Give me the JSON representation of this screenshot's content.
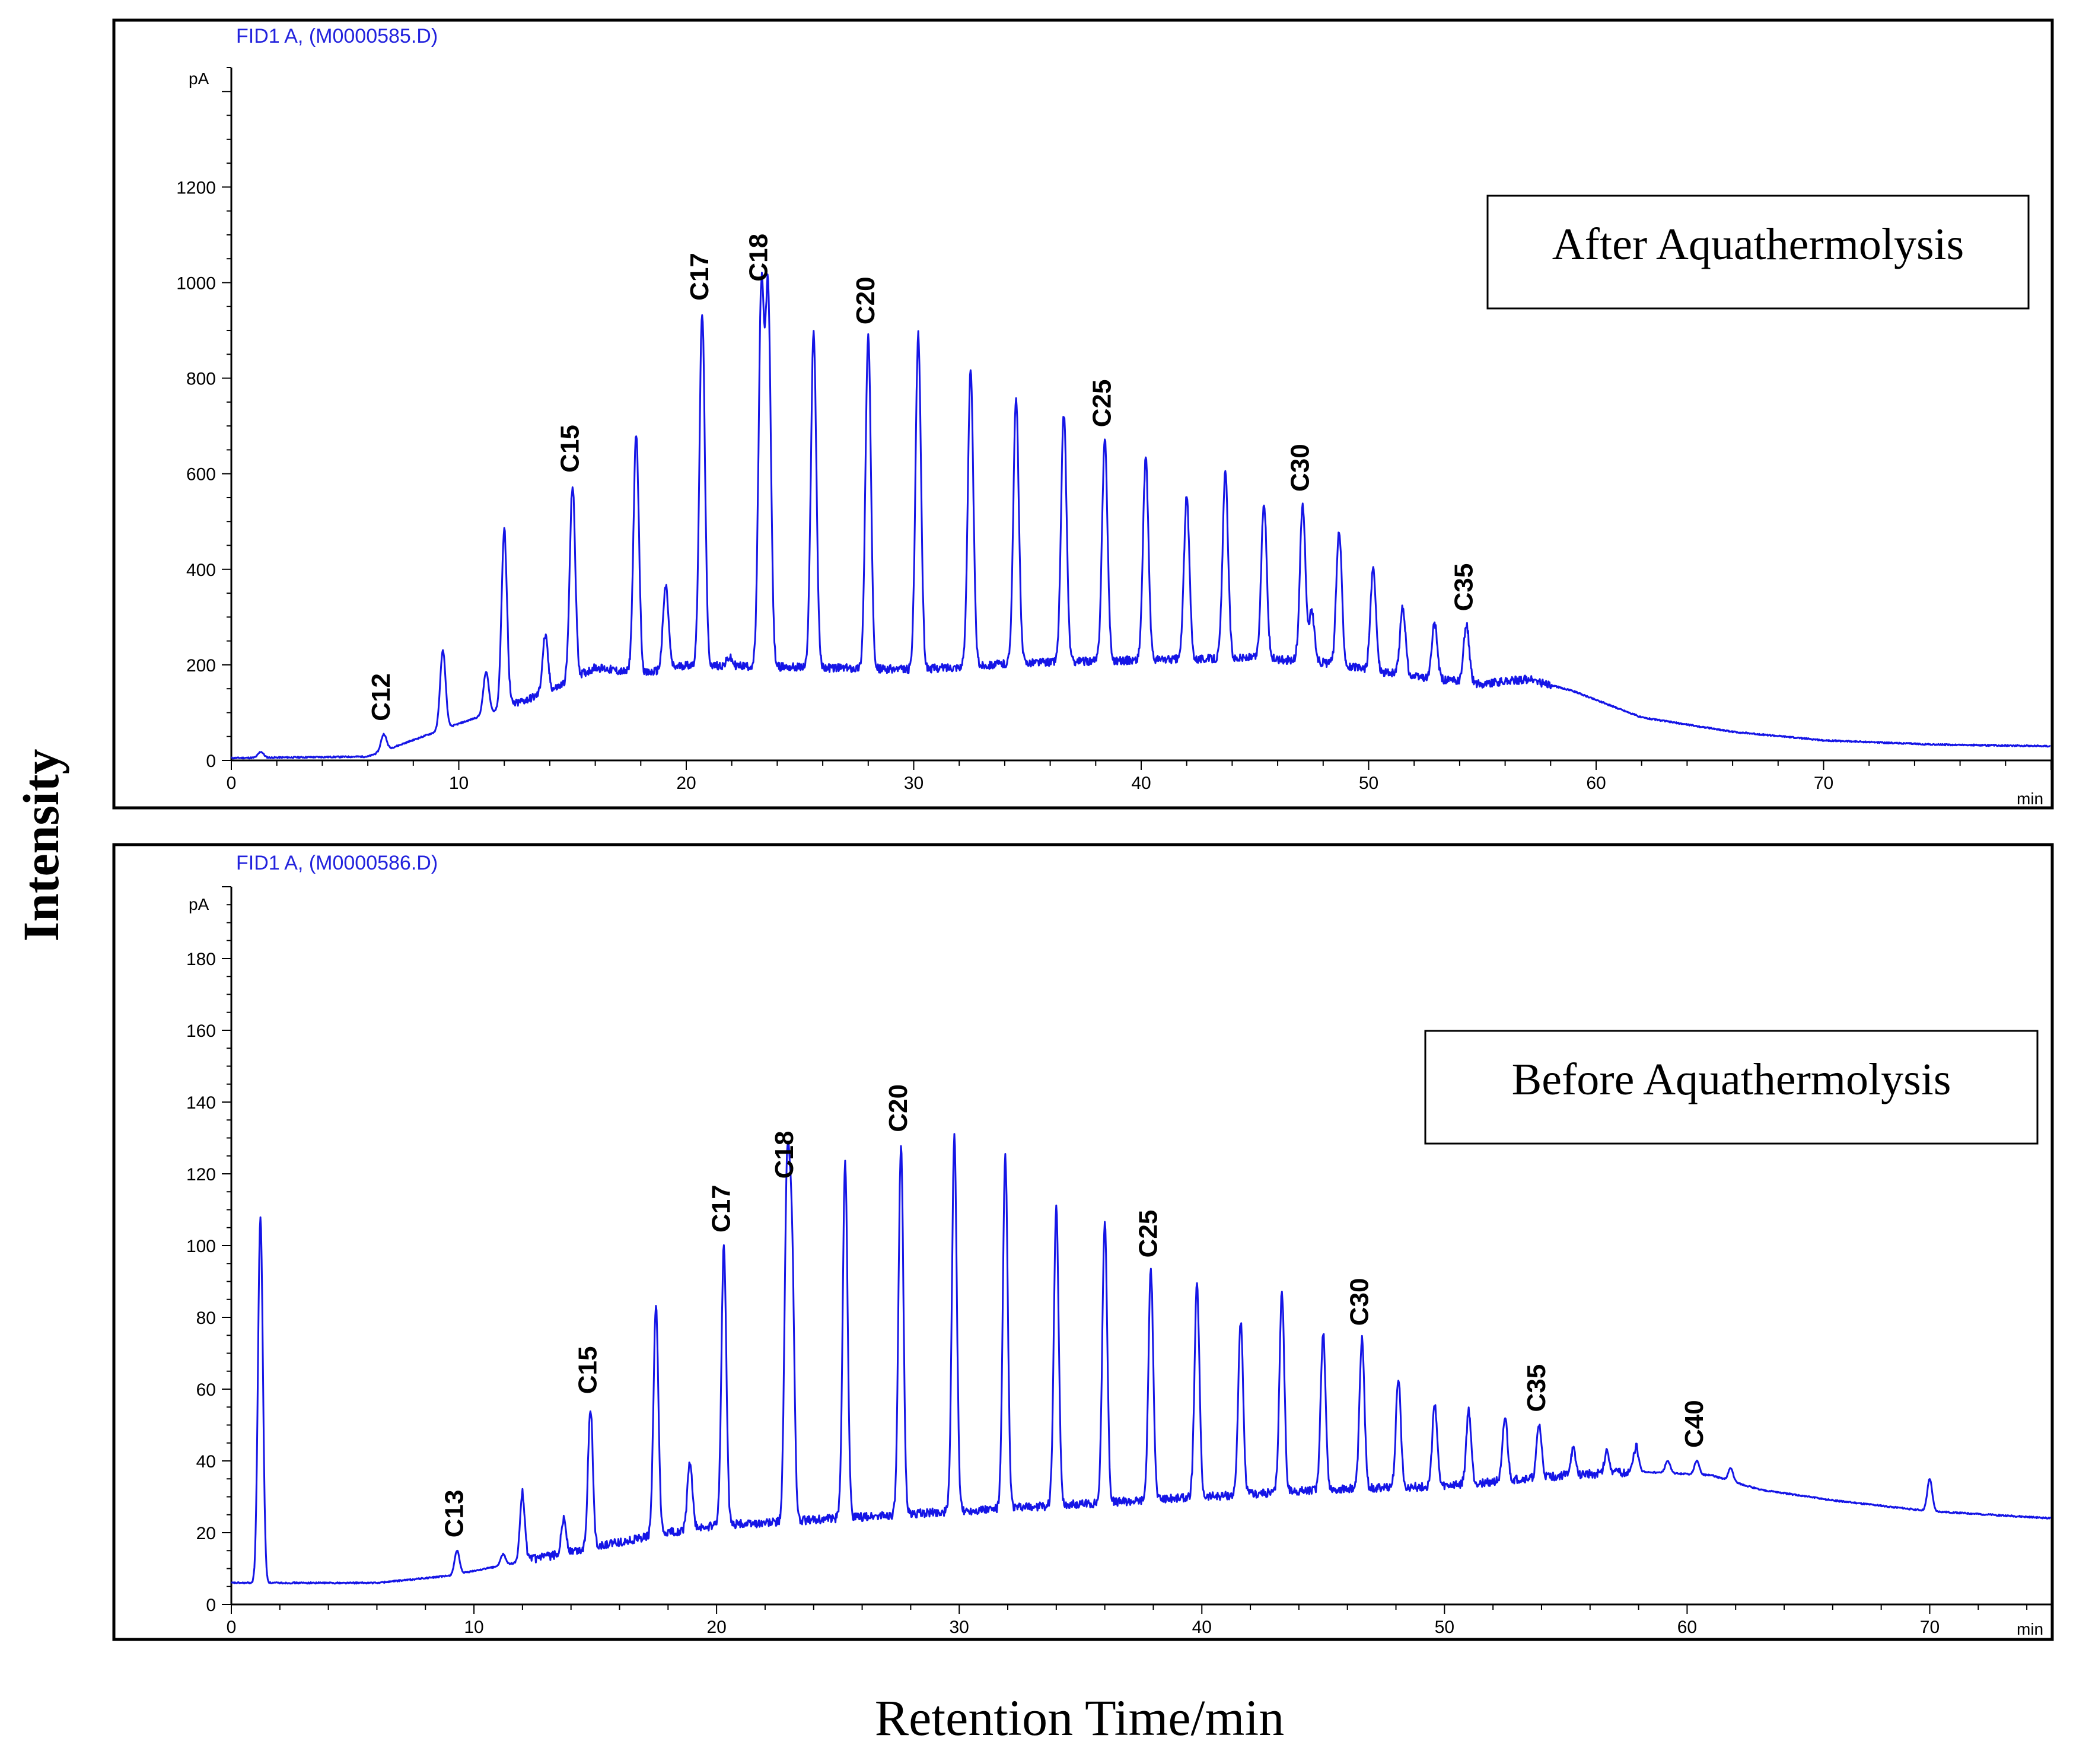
{
  "figure": {
    "ylabel": "Intensity",
    "xlabel": "Retention Time/min"
  },
  "chart_data": [
    {
      "type": "line",
      "panel": "after",
      "file_label": "FID1 A,  (M0000585.D)",
      "legend": "After Aquathermolysis",
      "y_unit": "pA",
      "x_unit": "min",
      "xlim": [
        0,
        80
      ],
      "ylim": [
        0,
        1450
      ],
      "xticks": [
        0,
        10,
        20,
        30,
        40,
        50,
        60,
        70
      ],
      "yticks": [
        0,
        200,
        400,
        600,
        800,
        1000,
        1200
      ],
      "baseline": [
        [
          0,
          5
        ],
        [
          6,
          8
        ],
        [
          9,
          60
        ],
        [
          12,
          110
        ],
        [
          14,
          145
        ],
        [
          16,
          195
        ],
        [
          18,
          180
        ],
        [
          20,
          200
        ],
        [
          25,
          195
        ],
        [
          30,
          190
        ],
        [
          35,
          205
        ],
        [
          40,
          210
        ],
        [
          45,
          215
        ],
        [
          48,
          205
        ],
        [
          52,
          175
        ],
        [
          55,
          160
        ],
        [
          57,
          170
        ],
        [
          59,
          145
        ],
        [
          62,
          90
        ],
        [
          66,
          60
        ],
        [
          70,
          42
        ],
        [
          75,
          33
        ],
        [
          80,
          30
        ]
      ],
      "peaks": [
        [
          1.3,
          18
        ],
        [
          6.7,
          55
        ],
        [
          8.5,
          25
        ],
        [
          9.3,
          230
        ],
        [
          11.2,
          185
        ],
        [
          12.0,
          480
        ],
        [
          13.8,
          260
        ],
        [
          15.0,
          575
        ],
        [
          17.8,
          680
        ],
        [
          19.1,
          365
        ],
        [
          20.7,
          935
        ],
        [
          21.9,
          215
        ],
        [
          23.3,
          975
        ],
        [
          23.6,
          970
        ],
        [
          25.6,
          895
        ],
        [
          28.0,
          885
        ],
        [
          30.2,
          890
        ],
        [
          32.5,
          815
        ],
        [
          34.5,
          755
        ],
        [
          36.6,
          725
        ],
        [
          38.4,
          670
        ],
        [
          40.2,
          630
        ],
        [
          42.0,
          550
        ],
        [
          43.7,
          600
        ],
        [
          45.4,
          540
        ],
        [
          47.1,
          535
        ],
        [
          47.5,
          310
        ],
        [
          48.7,
          480
        ],
        [
          50.2,
          400
        ],
        [
          51.5,
          320
        ],
        [
          52.9,
          285
        ],
        [
          54.3,
          285
        ]
      ],
      "peak_width": 0.12,
      "peak_labels": [
        {
          "text": "C12",
          "x": 6.7,
          "y": 55
        },
        {
          "text": "C15",
          "x": 15.0,
          "y": 575
        },
        {
          "text": "C17",
          "x": 20.7,
          "y": 935
        },
        {
          "text": "C18",
          "x": 23.3,
          "y": 975
        },
        {
          "text": "C20",
          "x": 28.0,
          "y": 885
        },
        {
          "text": "C25",
          "x": 38.4,
          "y": 670
        },
        {
          "text": "C30",
          "x": 47.1,
          "y": 535
        },
        {
          "text": "C35",
          "x": 54.3,
          "y": 285
        }
      ]
    },
    {
      "type": "line",
      "panel": "before",
      "file_label": "FID1 A,  (M0000586.D)",
      "legend": "Before Aquathermolysis",
      "y_unit": "pA",
      "x_unit": "min",
      "xlim": [
        0,
        75
      ],
      "ylim": [
        0,
        200
      ],
      "xticks": [
        0,
        10,
        20,
        30,
        40,
        50,
        60,
        70
      ],
      "yticks": [
        0,
        20,
        40,
        60,
        80,
        100,
        120,
        140,
        160,
        180
      ],
      "baseline": [
        [
          0,
          6
        ],
        [
          6,
          6
        ],
        [
          9,
          8
        ],
        [
          12,
          12
        ],
        [
          15,
          16
        ],
        [
          18,
          20
        ],
        [
          20,
          22
        ],
        [
          25,
          24
        ],
        [
          30,
          26
        ],
        [
          35,
          28
        ],
        [
          40,
          30
        ],
        [
          45,
          32
        ],
        [
          50,
          33
        ],
        [
          55,
          36
        ],
        [
          58,
          37
        ],
        [
          61,
          36
        ],
        [
          63,
          32
        ],
        [
          66,
          29
        ],
        [
          70,
          26
        ],
        [
          75,
          24
        ]
      ],
      "peaks": [
        [
          1.2,
          108
        ],
        [
          9.3,
          15
        ],
        [
          11.2,
          14
        ],
        [
          12.0,
          31
        ],
        [
          13.7,
          24
        ],
        [
          14.8,
          55
        ],
        [
          17.5,
          83
        ],
        [
          18.9,
          40
        ],
        [
          20.3,
          100
        ],
        [
          22.9,
          115
        ],
        [
          23.1,
          99
        ],
        [
          25.3,
          123
        ],
        [
          27.6,
          128
        ],
        [
          29.8,
          130
        ],
        [
          31.9,
          125
        ],
        [
          34.0,
          110
        ],
        [
          36.0,
          107
        ],
        [
          37.9,
          93
        ],
        [
          39.8,
          89
        ],
        [
          41.6,
          79
        ],
        [
          43.3,
          87
        ],
        [
          45.0,
          76
        ],
        [
          46.6,
          74
        ],
        [
          48.1,
          63
        ],
        [
          49.6,
          56
        ],
        [
          51.0,
          54
        ],
        [
          52.5,
          52
        ],
        [
          53.9,
          50
        ],
        [
          55.3,
          43
        ],
        [
          56.7,
          43
        ],
        [
          57.9,
          44
        ],
        [
          59.2,
          40
        ],
        [
          60.4,
          40
        ],
        [
          61.8,
          38
        ],
        [
          70.0,
          35
        ]
      ],
      "peak_width": 0.1,
      "peak_labels": [
        {
          "text": "C13",
          "x": 9.3,
          "y": 15
        },
        {
          "text": "C15",
          "x": 14.8,
          "y": 55
        },
        {
          "text": "C17",
          "x": 20.3,
          "y": 100
        },
        {
          "text": "C18",
          "x": 22.9,
          "y": 115
        },
        {
          "text": "C20",
          "x": 27.6,
          "y": 128
        },
        {
          "text": "C25",
          "x": 37.9,
          "y": 93
        },
        {
          "text": "C30",
          "x": 46.6,
          "y": 74
        },
        {
          "text": "C35",
          "x": 53.9,
          "y": 50
        },
        {
          "text": "C40",
          "x": 60.4,
          "y": 40
        }
      ]
    }
  ]
}
